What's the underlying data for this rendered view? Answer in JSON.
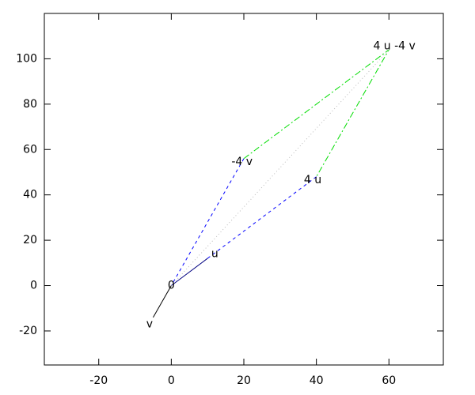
{
  "chart_data": {
    "type": "vector",
    "xlim": [
      -35,
      75
    ],
    "ylim": [
      -35,
      120
    ],
    "xticks": [
      -20,
      0,
      20,
      40,
      60
    ],
    "yticks": [
      -20,
      0,
      20,
      40,
      60,
      80,
      100
    ],
    "series": [
      {
        "color": "#000080",
        "style": "solid",
        "x": [
          0,
          10
        ],
        "y": [
          0,
          12
        ]
      },
      {
        "color": "#000000",
        "style": "solid",
        "x": [
          0,
          -5
        ],
        "y": [
          0,
          -14
        ]
      },
      {
        "color": "#0000ff",
        "style": "dashed",
        "x": [
          20,
          0,
          null,
          10,
          40
        ],
        "y": [
          56,
          0,
          null,
          12,
          48
        ]
      },
      {
        "color": "#00dd00",
        "style": "dashdot",
        "x": [
          20,
          60,
          40
        ],
        "y": [
          56,
          104,
          48
        ]
      },
      {
        "color": "#bbbbbb",
        "style": "dotted",
        "x": [
          0,
          60
        ],
        "y": [
          0,
          104
        ]
      }
    ],
    "labels": [
      {
        "text": "0",
        "x": 0,
        "y": 0
      },
      {
        "text": "u",
        "x": 12,
        "y": 14
      },
      {
        "text": "v",
        "x": -6,
        "y": -17
      },
      {
        "text": "4 u",
        "x": 39,
        "y": 46.5
      },
      {
        "text": "-4 v",
        "x": 19.5,
        "y": 54.5
      },
      {
        "text": "4 u -4 v",
        "x": 61.5,
        "y": 105.5
      }
    ]
  }
}
